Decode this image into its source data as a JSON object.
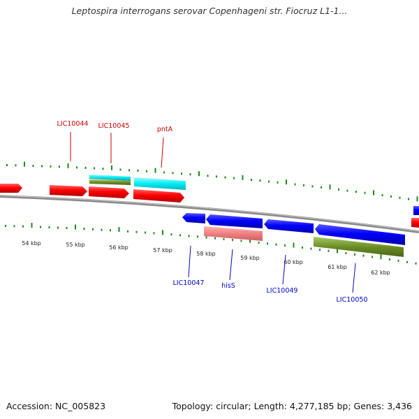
{
  "title": "Leptospira interrogans serovar Copenhageni str. Fiocruz L1-1...",
  "footer": {
    "accession": "Accession: NC_005823",
    "summary": "Topology: circular; Length: 4,277,185 bp; Genes: 3,436"
  },
  "colors": {
    "forward": "#ff0000",
    "reverse": "#0000ff",
    "cyan": "#00e5ee",
    "olive": "#6b8e23",
    "pink": "#f08080",
    "backbone": "#808080",
    "tick": "#1a8a1a",
    "forward_label": "#cc0000",
    "reverse_label": "#0000cc"
  },
  "kbp_labels": [
    "54 kbp",
    "55 kbp",
    "56 kbp",
    "57 kbp",
    "58 kbp",
    "59 kbp",
    "60 kbp",
    "61 kbp",
    "62 kbp"
  ],
  "gene_labels_top": [
    "LIC10044",
    "LIC10045",
    "pntA"
  ],
  "gene_labels_bottom": [
    "LIC10047",
    "hisS",
    "LIC10049",
    "LIC10050"
  ]
}
